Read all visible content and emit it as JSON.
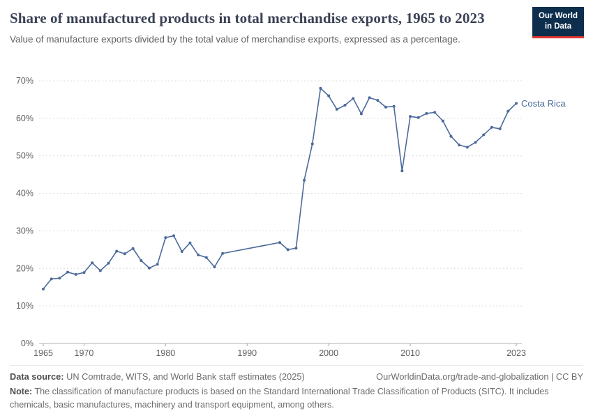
{
  "header": {
    "title": "Share of manufactured products in total merchandise exports, 1965 to 2023",
    "subtitle": "Value of manufacture exports divided by the total value of merchandise exports, expressed as a percentage.",
    "logo": {
      "line1": "Our World",
      "line2": "in Data"
    }
  },
  "chart_data": {
    "type": "line",
    "title": "Share of manufactured products in total merchandise exports, 1965 to 2023",
    "xlabel": "",
    "ylabel": "",
    "xlim": [
      1965,
      2023
    ],
    "ylim": [
      0,
      70
    ],
    "x_ticks": [
      1965,
      1970,
      1980,
      1990,
      2000,
      2010,
      2023
    ],
    "y_ticks": [
      0,
      10,
      20,
      30,
      40,
      50,
      60,
      70
    ],
    "y_tick_suffix": "%",
    "grid": true,
    "legend_position": "end-of-line-label",
    "series": [
      {
        "name": "Costa Rica",
        "color": "#4c6a9c",
        "x": [
          1965,
          1966,
          1967,
          1968,
          1969,
          1970,
          1971,
          1972,
          1973,
          1974,
          1975,
          1976,
          1977,
          1978,
          1979,
          1980,
          1981,
          1982,
          1983,
          1984,
          1985,
          1986,
          1987,
          1994,
          1995,
          1996,
          1997,
          1998,
          1999,
          2000,
          2001,
          2002,
          2003,
          2004,
          2005,
          2006,
          2007,
          2008,
          2009,
          2010,
          2011,
          2012,
          2013,
          2014,
          2015,
          2016,
          2017,
          2018,
          2019,
          2020,
          2021,
          2022,
          2023
        ],
        "values": [
          14.5,
          17.2,
          17.4,
          19.0,
          18.4,
          18.9,
          21.5,
          19.4,
          21.4,
          24.6,
          23.9,
          25.3,
          22.1,
          20.1,
          21.1,
          28.2,
          28.7,
          24.5,
          26.8,
          23.6,
          22.9,
          20.4,
          24.0,
          26.9,
          25.0,
          25.4,
          43.5,
          53.2,
          68.0,
          66.0,
          62.4,
          63.5,
          65.3,
          61.2,
          65.5,
          64.8,
          63.0,
          63.2,
          46.0,
          60.5,
          60.2,
          61.3,
          61.6,
          59.3,
          55.2,
          52.9,
          52.3,
          53.6,
          55.6,
          57.6,
          57.2,
          61.9,
          64.0
        ]
      }
    ]
  },
  "footer": {
    "datasource_label": "Data source:",
    "datasource_text": " UN Comtrade, WITS, and World Bank staff estimates (2025)",
    "link": "OurWorldinData.org/trade-and-globalization | CC BY",
    "note_label": "Note:",
    "note_text": " The classification of manufacture products is based on the Standard International Trade Classification of Products (SITC). It includes chemicals, basic manufactures, machinery and transport equipment, among others."
  },
  "colors": {
    "accent_line": "#4c6a9c",
    "logo_bg": "#0e2e4e",
    "logo_red": "#e0362c",
    "gridline": "#dcdcdc",
    "axis_text": "#5e5e5e"
  }
}
